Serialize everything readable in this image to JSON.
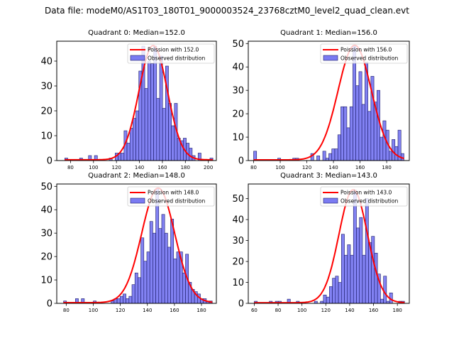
{
  "suptitle": "Data file: modeM0/AS1T03_180T01_9000003524_23768cztM0_level2_quad_clean.evt",
  "colors": {
    "bar_fill": "#7b7bf2",
    "bar_edge": "#1a1a66",
    "poisson_line": "#ff0000"
  },
  "chart_data": [
    {
      "type": "bar",
      "title": "Quadrant 0: Median=152.0",
      "legend": [
        "Poission with 152.0",
        "Observed distribution"
      ],
      "legend_position": "top-right",
      "median": 152.0,
      "xlim": [
        68,
        207
      ],
      "ylim": [
        0,
        48
      ],
      "xticks": [
        80,
        100,
        120,
        140,
        160,
        180,
        200
      ],
      "yticks": [
        0,
        10,
        20,
        30,
        40
      ],
      "bin_start": 75,
      "bin_width": 2.58,
      "counts": [
        1,
        0,
        0,
        0,
        0,
        1,
        0,
        0,
        2,
        0,
        2,
        0,
        0,
        0,
        0,
        1,
        0,
        3,
        3,
        3,
        12,
        7,
        13,
        17,
        20,
        36,
        46,
        29,
        40,
        39,
        46,
        25,
        42,
        21,
        38,
        23,
        14,
        23,
        9,
        8,
        9,
        7,
        5,
        2,
        0,
        3,
        0,
        0,
        0,
        1
      ],
      "poisson_peak": 46
    },
    {
      "type": "bar",
      "title": "Quadrant 1: Median=156.0",
      "legend": [
        "Poission with 156.0",
        "Observed distribution"
      ],
      "legend_position": "top-right",
      "median": 156.0,
      "xlim": [
        76,
        197
      ],
      "ylim": [
        0,
        51
      ],
      "xticks": [
        80,
        100,
        120,
        140,
        160,
        180
      ],
      "yticks": [
        0,
        10,
        20,
        30,
        40,
        50
      ],
      "bin_start": 80,
      "bin_width": 2.26,
      "counts": [
        4,
        0,
        0,
        0,
        0,
        0,
        0,
        0,
        1,
        0,
        0,
        0,
        0,
        1,
        1,
        0,
        0,
        0,
        0,
        3,
        0,
        2,
        0,
        4,
        1,
        3,
        5,
        5,
        11,
        23,
        23,
        14,
        23,
        49,
        32,
        38,
        24,
        42,
        21,
        36,
        25,
        30,
        10,
        17,
        13,
        4,
        9,
        6,
        13,
        3
      ],
      "poisson_peak": 49
    },
    {
      "type": "bar",
      "title": "Quadrant 2: Median=148.0",
      "legend": [
        "Poission with 148.0",
        "Observed distribution"
      ],
      "legend_position": "top-right",
      "median": 148.0,
      "xlim": [
        73,
        191
      ],
      "ylim": [
        0,
        51
      ],
      "xticks": [
        80,
        100,
        120,
        140,
        160,
        180
      ],
      "yticks": [
        0,
        10,
        20,
        30,
        40,
        50
      ],
      "bin_start": 78,
      "bin_width": 2.2,
      "counts": [
        1,
        0,
        0,
        0,
        2,
        0,
        2,
        0,
        0,
        0,
        1,
        0,
        0,
        0,
        0,
        0,
        1,
        2,
        2,
        3,
        4,
        2,
        3,
        8,
        13,
        11,
        28,
        18,
        22,
        35,
        30,
        49,
        32,
        38,
        30,
        24,
        36,
        19,
        22,
        22,
        13,
        21,
        9,
        6,
        5,
        4,
        2,
        2,
        1,
        1
      ],
      "poisson_peak": 49
    },
    {
      "type": "bar",
      "title": "Quadrant 3: Median=143.0",
      "legend": [
        "Poission with 143.0",
        "Observed distribution"
      ],
      "legend_position": "top-right",
      "median": 143.0,
      "xlim": [
        55,
        190
      ],
      "ylim": [
        0,
        57
      ],
      "xticks": [
        60,
        80,
        100,
        120,
        140,
        160,
        180
      ],
      "yticks": [
        0,
        10,
        20,
        30,
        40,
        50
      ],
      "bin_start": 60,
      "bin_width": 2.52,
      "counts": [
        1,
        0,
        0,
        0,
        0,
        1,
        0,
        1,
        1,
        0,
        0,
        2,
        0,
        0,
        1,
        0,
        0,
        0,
        0,
        0,
        1,
        0,
        1,
        4,
        3,
        8,
        12,
        13,
        10,
        33,
        23,
        28,
        23,
        54,
        36,
        41,
        23,
        50,
        29,
        32,
        24,
        14,
        2,
        13,
        1,
        5,
        0,
        0,
        1,
        1
      ],
      "poisson_peak": 54
    }
  ]
}
